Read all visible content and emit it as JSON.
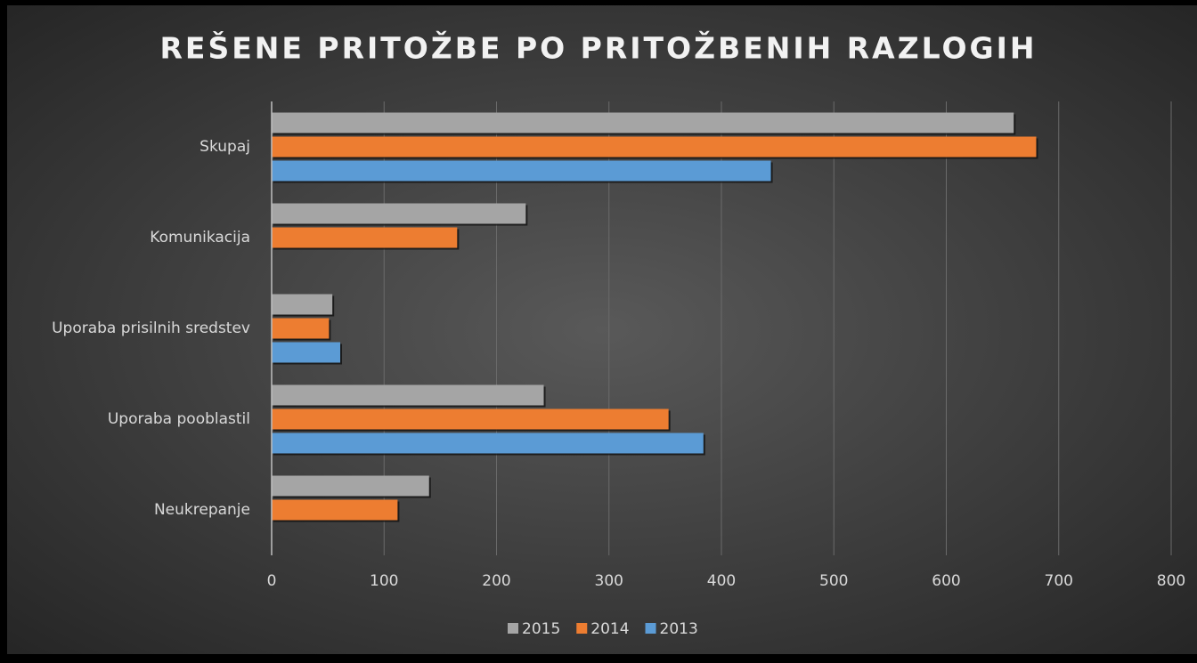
{
  "chart_data": {
    "type": "hbar",
    "title": "REŠENE PRITOŽBE PO PRITOŽBENIH RAZLOGIH",
    "categories": [
      "Skupaj",
      "Komunikacija",
      "Uporaba prisilnih sredstev",
      "Uporaba pooblastil",
      "Neukrepanje"
    ],
    "series": [
      {
        "name": "2015",
        "color": "#a5a5a5",
        "values": [
          660,
          226,
          54,
          242,
          140
        ]
      },
      {
        "name": "2014",
        "color": "#ed7d31",
        "values": [
          680,
          165,
          51,
          353,
          112
        ]
      },
      {
        "name": "2013",
        "color": "#5b9bd5",
        "values": [
          444,
          null,
          61,
          384,
          null
        ]
      }
    ],
    "xlim": [
      0,
      800
    ],
    "xticks": [
      0,
      100,
      200,
      300,
      400,
      500,
      600,
      700,
      800
    ],
    "grid": true,
    "legend": "bottom"
  }
}
